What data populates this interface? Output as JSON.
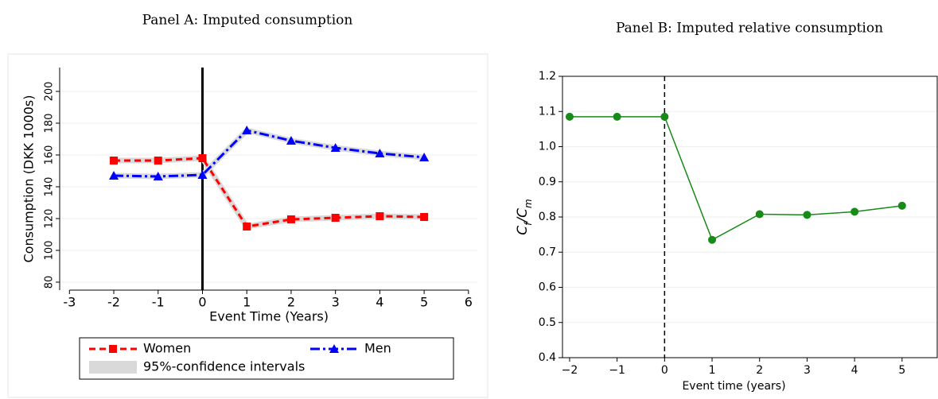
{
  "chart_data": [
    {
      "type": "line",
      "title": "Panel A: Imputed consumption",
      "xlabel": "Event Time (Years)",
      "ylabel": "Consumption (DKK 1000s)",
      "x": [
        -2,
        -1,
        0,
        1,
        2,
        3,
        4,
        5
      ],
      "series": [
        {
          "name": "Women",
          "color": "#ff0000",
          "marker": "square",
          "dash": "8,5",
          "values": [
            156.5,
            156.5,
            158,
            115,
            119.5,
            120.5,
            121.5,
            121
          ]
        },
        {
          "name": "Men",
          "color": "#0000ff",
          "marker": "triangle",
          "dash": "12,4,3,4",
          "values": [
            147,
            146.5,
            147.5,
            175.5,
            169,
            164.5,
            161,
            158.5
          ]
        }
      ],
      "ci_legend": "95%-confidence intervals",
      "ci_color": "#d9d9d9",
      "event_line": {
        "x": 0,
        "style": "solid"
      },
      "xlim": [
        -3.4,
        6.2
      ],
      "ylim": [
        75,
        215
      ],
      "xticks": [
        -3,
        -2,
        -1,
        0,
        1,
        2,
        3,
        4,
        5,
        6
      ],
      "yticks": [
        80,
        100,
        120,
        140,
        160,
        180,
        200
      ],
      "grid": true
    },
    {
      "type": "line",
      "title": "Panel B: Imputed relative consumption",
      "xlabel": "Event time (years)",
      "ylabel_parts": [
        "C",
        "f",
        "/C",
        "m"
      ],
      "x": [
        -2,
        -1,
        0,
        1,
        2,
        3,
        4,
        5
      ],
      "series": [
        {
          "name": null,
          "color": "#178a17",
          "marker": "circle",
          "dash": null,
          "values": [
            1.085,
            1.085,
            1.085,
            0.735,
            0.808,
            0.806,
            0.815,
            0.832
          ]
        }
      ],
      "event_line": {
        "x": 0,
        "style": "dashed"
      },
      "xlim": [
        -2.15,
        5.74
      ],
      "ylim": [
        0.4,
        1.2
      ],
      "xticks": [
        {
          "value": -2,
          "label": "−2"
        },
        {
          "value": -1,
          "label": "−1"
        },
        0,
        1,
        2,
        3,
        4,
        5
      ],
      "yticks": [
        0.4,
        0.5,
        0.6,
        0.7,
        0.8,
        0.9,
        {
          "value": 1.0,
          "label": "1.0"
        },
        1.1,
        1.2
      ],
      "grid": true
    }
  ]
}
